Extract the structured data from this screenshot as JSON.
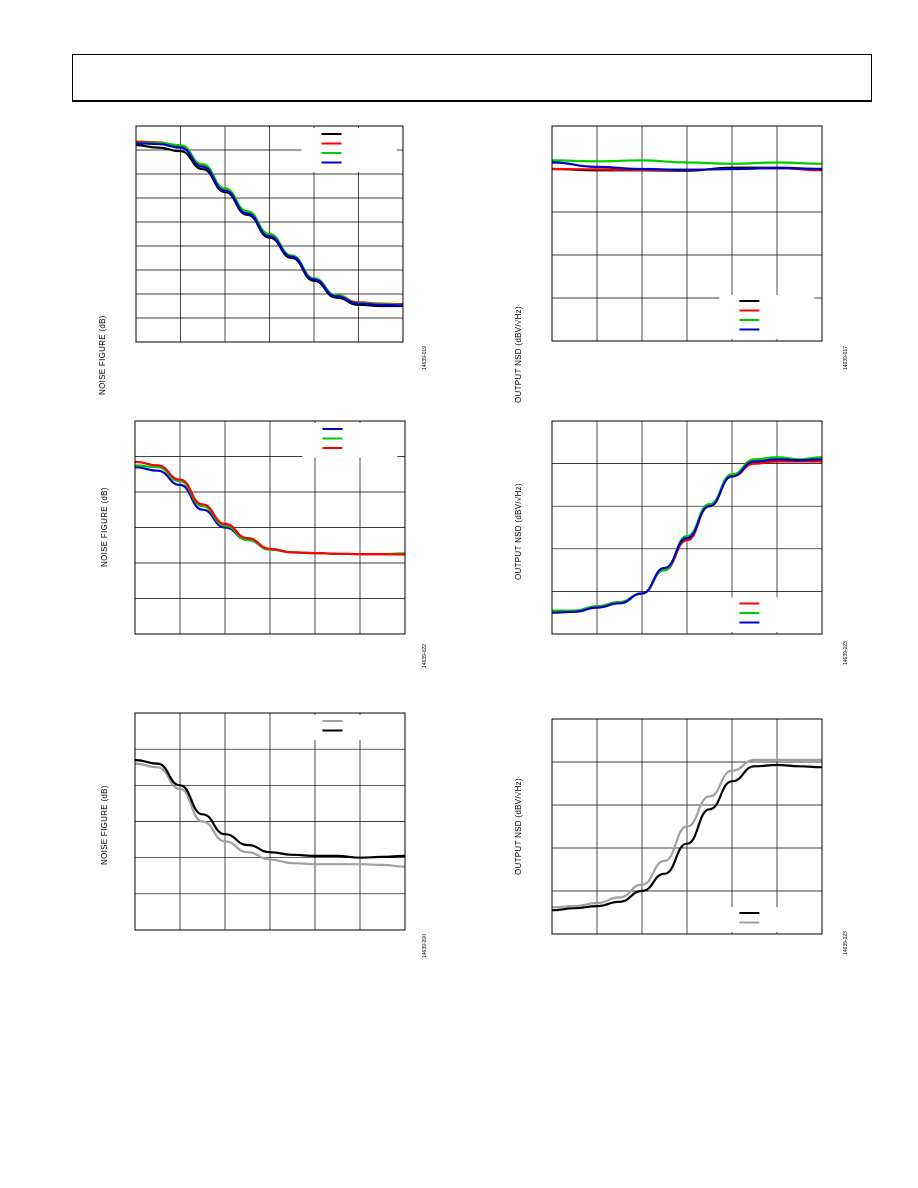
{
  "header": {
    "text": ""
  },
  "chart_data": [
    {
      "id": "c1",
      "type": "line",
      "ylabel": "NOISE FIGURE (dB)",
      "figure_id": "14639-019",
      "xlim": [
        0,
        6
      ],
      "ylim": [
        0,
        9
      ],
      "grid": true,
      "legend_position": "top-right",
      "series": [
        {
          "color": "#000000",
          "x": [
            0,
            0.5,
            1,
            1.5,
            2,
            2.5,
            3,
            3.5,
            4,
            4.5,
            5,
            5.5,
            6
          ],
          "y": [
            8.2,
            8.1,
            7.95,
            7.2,
            6.25,
            5.3,
            4.35,
            3.5,
            2.55,
            1.85,
            1.55,
            1.5,
            1.5
          ]
        },
        {
          "color": "#ff0000",
          "x": [
            0,
            0.5,
            1,
            1.5,
            2,
            2.5,
            3,
            3.5,
            4,
            4.5,
            5,
            5.5,
            6
          ],
          "y": [
            8.35,
            8.32,
            8.15,
            7.35,
            6.35,
            5.4,
            4.45,
            3.6,
            2.65,
            1.95,
            1.65,
            1.6,
            1.58
          ]
        },
        {
          "color": "#00cc00",
          "x": [
            0,
            0.5,
            1,
            1.5,
            2,
            2.5,
            3,
            3.5,
            4,
            4.5,
            5,
            5.5,
            6
          ],
          "y": [
            8.3,
            8.3,
            8.2,
            7.4,
            6.4,
            5.45,
            4.5,
            3.6,
            2.65,
            1.95,
            1.62,
            1.58,
            1.55
          ]
        },
        {
          "color": "#0000cc",
          "x": [
            0,
            0.5,
            1,
            1.5,
            2,
            2.5,
            3,
            3.5,
            4,
            4.5,
            5,
            5.5,
            6
          ],
          "y": [
            8.28,
            8.25,
            8.1,
            7.3,
            6.3,
            5.35,
            4.4,
            3.55,
            2.6,
            1.9,
            1.6,
            1.55,
            1.52
          ]
        }
      ]
    },
    {
      "id": "c2",
      "type": "line",
      "ylabel": "OUTPUT NSD (dBV/√Hz)",
      "figure_id": "14639-017",
      "xlim": [
        0,
        6
      ],
      "ylim": [
        0,
        5
      ],
      "grid": true,
      "legend_position": "bottom-right",
      "series": [
        {
          "color": "#000000",
          "x": [
            0,
            1,
            2,
            3,
            4,
            5,
            6
          ],
          "y": [
            4.0,
            3.97,
            3.97,
            3.96,
            4.03,
            4.03,
            4.0
          ]
        },
        {
          "color": "#ff0000",
          "x": [
            0,
            1,
            2,
            3,
            4,
            5,
            6
          ],
          "y": [
            4.0,
            3.99,
            3.98,
            3.98,
            4.0,
            4.02,
            3.97
          ]
        },
        {
          "color": "#00cc00",
          "x": [
            0,
            1,
            2,
            3,
            4,
            5,
            6
          ],
          "y": [
            4.2,
            4.18,
            4.2,
            4.15,
            4.12,
            4.15,
            4.12
          ]
        },
        {
          "color": "#0000cc",
          "x": [
            0,
            1,
            2,
            3,
            4,
            5,
            6
          ],
          "y": [
            4.15,
            4.05,
            4.0,
            3.98,
            4.0,
            4.02,
            4.0
          ]
        }
      ]
    },
    {
      "id": "c3",
      "type": "line",
      "ylabel": "NOISE FIGURE (dB)",
      "figure_id": "14639-022",
      "xlim": [
        0,
        6
      ],
      "ylim": [
        0,
        6
      ],
      "grid": true,
      "legend_position": "top-right",
      "series": [
        {
          "color": "#0000cc",
          "x": [
            0,
            0.5,
            1,
            1.5,
            2,
            2.5,
            3,
            3.5,
            4,
            4.5,
            5,
            5.5,
            6
          ],
          "y": [
            4.7,
            4.6,
            4.2,
            3.5,
            3.0,
            2.65,
            2.38,
            2.3,
            2.28,
            2.26,
            2.25,
            2.25,
            2.25
          ]
        },
        {
          "color": "#00cc00",
          "x": [
            0,
            0.5,
            1,
            1.5,
            2,
            2.5,
            3,
            3.5,
            4,
            4.5,
            5,
            5.5,
            6
          ],
          "y": [
            4.75,
            4.7,
            4.3,
            3.6,
            3.05,
            2.65,
            2.38,
            2.3,
            2.28,
            2.26,
            2.25,
            2.25,
            2.27
          ]
        },
        {
          "color": "#ff0000",
          "x": [
            0,
            0.5,
            1,
            1.5,
            2,
            2.5,
            3,
            3.5,
            4,
            4.5,
            5,
            5.5,
            6
          ],
          "y": [
            4.85,
            4.75,
            4.35,
            3.65,
            3.1,
            2.7,
            2.4,
            2.3,
            2.28,
            2.26,
            2.25,
            2.25,
            2.24
          ]
        }
      ]
    },
    {
      "id": "c4",
      "type": "line",
      "ylabel": "OUTPUT NSD (dBV/√Hz)",
      "figure_id": "14639-023",
      "xlim": [
        0,
        6
      ],
      "ylim": [
        0,
        5
      ],
      "grid": true,
      "legend_position": "bottom-right",
      "series": [
        {
          "color": "#ff0000",
          "x": [
            0,
            0.5,
            1,
            1.5,
            2,
            2.5,
            3,
            3.5,
            4,
            4.5,
            5,
            5.5,
            6
          ],
          "y": [
            0.55,
            0.55,
            0.65,
            0.75,
            0.95,
            1.5,
            2.2,
            3.0,
            3.7,
            4.0,
            4.05,
            4.05,
            4.05
          ]
        },
        {
          "color": "#00cc00",
          "x": [
            0,
            0.5,
            1,
            1.5,
            2,
            2.5,
            3,
            3.5,
            4,
            4.5,
            5,
            5.5,
            6
          ],
          "y": [
            0.55,
            0.55,
            0.65,
            0.75,
            0.95,
            1.5,
            2.3,
            3.05,
            3.75,
            4.1,
            4.15,
            4.1,
            4.15
          ]
        },
        {
          "color": "#0000cc",
          "x": [
            0,
            0.5,
            1,
            1.5,
            2,
            2.5,
            3,
            3.5,
            4,
            4.5,
            5,
            5.5,
            6
          ],
          "y": [
            0.5,
            0.52,
            0.62,
            0.72,
            0.95,
            1.55,
            2.25,
            3.0,
            3.7,
            4.05,
            4.1,
            4.08,
            4.1
          ]
        }
      ]
    },
    {
      "id": "c5",
      "type": "line",
      "ylabel": "NOISE FIGURE (dB)",
      "figure_id": "14639-200",
      "xlim": [
        0,
        6
      ],
      "ylim": [
        0,
        6
      ],
      "grid": true,
      "legend_position": "top-right",
      "series": [
        {
          "color": "#a0a0a0",
          "x": [
            0,
            0.5,
            1,
            1.5,
            2,
            2.5,
            3,
            3.5,
            4,
            4.5,
            5,
            5.5,
            6
          ],
          "y": [
            4.6,
            4.5,
            3.9,
            3.0,
            2.45,
            2.15,
            1.95,
            1.85,
            1.82,
            1.82,
            1.82,
            1.8,
            1.75
          ]
        },
        {
          "color": "#000000",
          "x": [
            0,
            0.5,
            1,
            1.5,
            2,
            2.5,
            3,
            3.5,
            4,
            4.5,
            5,
            5.5,
            6
          ],
          "y": [
            4.7,
            4.6,
            4.0,
            3.2,
            2.65,
            2.35,
            2.15,
            2.08,
            2.05,
            2.05,
            2.0,
            2.02,
            2.05
          ]
        }
      ]
    },
    {
      "id": "c6",
      "type": "line",
      "ylabel": "OUTPUT NSD (dBV/√Hz)",
      "figure_id": "14639-123",
      "xlim": [
        0,
        6
      ],
      "ylim": [
        0,
        5
      ],
      "grid": true,
      "legend_position": "bottom-right",
      "series": [
        {
          "color": "#000000",
          "x": [
            0,
            0.5,
            1,
            1.5,
            2,
            2.5,
            3,
            3.5,
            4,
            4.5,
            5,
            5.5,
            6
          ],
          "y": [
            0.55,
            0.6,
            0.65,
            0.75,
            1.0,
            1.4,
            2.1,
            2.9,
            3.55,
            3.9,
            3.93,
            3.9,
            3.88
          ]
        },
        {
          "color": "#a0a0a0",
          "x": [
            0,
            0.5,
            1,
            1.5,
            2,
            2.5,
            3,
            3.5,
            4,
            4.5,
            5,
            5.5,
            6
          ],
          "y": [
            0.62,
            0.65,
            0.72,
            0.85,
            1.15,
            1.7,
            2.5,
            3.2,
            3.8,
            4.05,
            4.05,
            4.05,
            4.05
          ]
        }
      ]
    }
  ]
}
